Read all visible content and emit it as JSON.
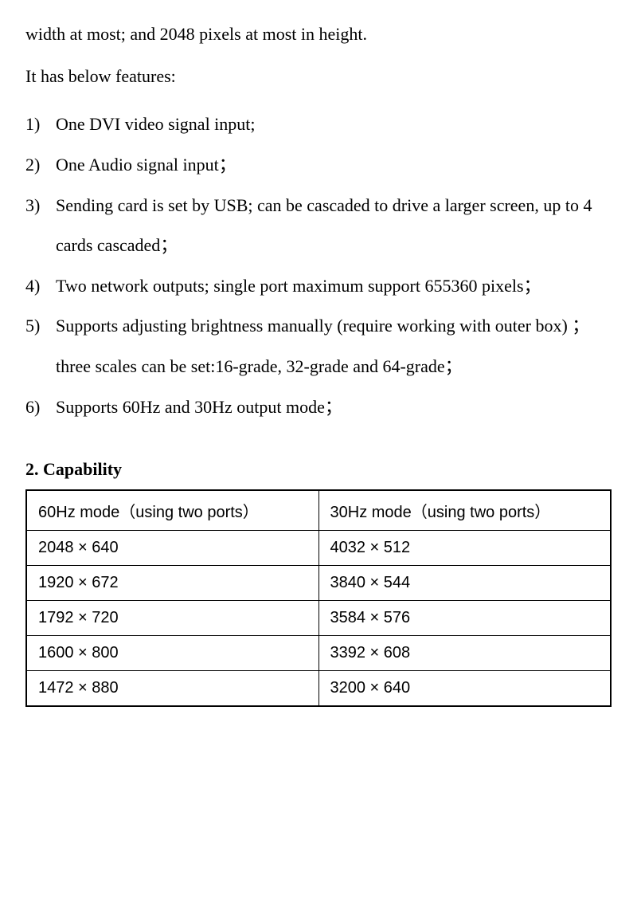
{
  "intro": "width at most; and 2048 pixels at most in height.",
  "features_intro": "It has below features:",
  "features": [
    "One DVI video signal input;",
    "One Audio signal input；",
    "Sending card is set by USB; can be cascaded to drive a larger screen, up to 4 cards cascaded；",
    "Two network outputs; single port maximum support 655360 pixels；",
    "Supports adjusting brightness manually (require working with outer box) ； three scales can be set:16-grade, 32-grade and 64-grade；",
    "Supports 60Hz and 30Hz output mode；"
  ],
  "section_heading": "2. Capability",
  "capability_table": {
    "columns": [
      "60Hz mode（using two ports）",
      "30Hz mode（using two ports）"
    ],
    "rows": [
      [
        "2048 × 640",
        "4032 × 512"
      ],
      [
        "1920 × 672",
        "3840 × 544"
      ],
      [
        "1792 × 720",
        "3584 × 576"
      ],
      [
        "1600 × 800",
        "3392 × 608"
      ],
      [
        "1472 × 880",
        "3200 × 640"
      ]
    ],
    "styling": {
      "border_color": "#000000",
      "border_width_outer": 2,
      "border_width_inner": 1,
      "cell_padding": 12,
      "font_size": 20,
      "background_color": "#ffffff",
      "text_color": "#000000",
      "column_widths": [
        "50%",
        "50%"
      ]
    }
  },
  "colors": {
    "background": "#ffffff",
    "text": "#000000"
  },
  "typography": {
    "body_font": "Times New Roman",
    "body_size": 22,
    "table_font": "Arial",
    "table_size": 20
  }
}
